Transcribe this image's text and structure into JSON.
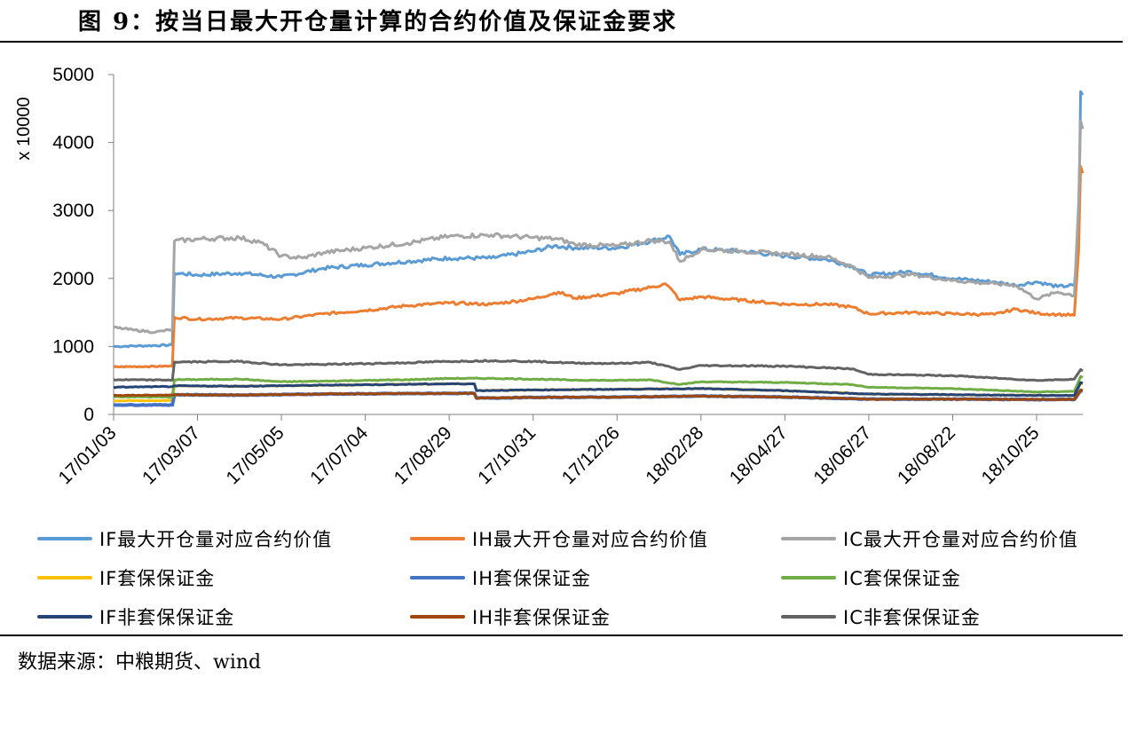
{
  "title": "图 9：按当日最大开仓量计算的合约价值及保证金要求",
  "source": "数据来源：中粮期货、wind",
  "chart_data": {
    "type": "line",
    "y_unit_label": "x 10000",
    "ylim": [
      0,
      5000
    ],
    "y_ticks": [
      0,
      1000,
      2000,
      3000,
      4000,
      5000
    ],
    "x_ticks": [
      "17/01/03",
      "17/03/07",
      "17/05/05",
      "17/07/04",
      "17/08/29",
      "17/10/31",
      "17/12/26",
      "18/02/28",
      "18/04/27",
      "18/06/27",
      "18/08/22",
      "18/10/25"
    ],
    "x_tick_index": [
      0,
      40,
      80,
      120,
      160,
      200,
      240,
      280,
      320,
      360,
      400,
      440
    ],
    "x_max_index": 462,
    "grid": false,
    "legend_position": "bottom",
    "series": [
      {
        "name": "IF最大开仓量对应合约价值",
        "color": "#5B9BD5",
        "width": 3,
        "points": [
          [
            0,
            1000
          ],
          [
            28,
            1020
          ],
          [
            29,
            2080
          ],
          [
            40,
            2050
          ],
          [
            60,
            2080
          ],
          [
            80,
            2020
          ],
          [
            100,
            2150
          ],
          [
            120,
            2200
          ],
          [
            140,
            2250
          ],
          [
            160,
            2300
          ],
          [
            180,
            2300
          ],
          [
            200,
            2400
          ],
          [
            210,
            2480
          ],
          [
            220,
            2450
          ],
          [
            240,
            2450
          ],
          [
            256,
            2550
          ],
          [
            265,
            2620
          ],
          [
            270,
            2350
          ],
          [
            280,
            2430
          ],
          [
            300,
            2400
          ],
          [
            320,
            2330
          ],
          [
            340,
            2280
          ],
          [
            352,
            2180
          ],
          [
            360,
            2050
          ],
          [
            380,
            2100
          ],
          [
            400,
            2000
          ],
          [
            420,
            1950
          ],
          [
            430,
            1900
          ],
          [
            440,
            1950
          ],
          [
            450,
            1880
          ],
          [
            458,
            1900
          ],
          [
            460,
            2600
          ],
          [
            461,
            4750
          ],
          [
            462,
            4700
          ]
        ]
      },
      {
        "name": "IH最大开仓量对应合约价值",
        "color": "#ED7D31",
        "width": 3,
        "points": [
          [
            0,
            700
          ],
          [
            28,
            710
          ],
          [
            29,
            1430
          ],
          [
            40,
            1400
          ],
          [
            60,
            1420
          ],
          [
            80,
            1400
          ],
          [
            100,
            1480
          ],
          [
            120,
            1530
          ],
          [
            140,
            1600
          ],
          [
            160,
            1640
          ],
          [
            180,
            1620
          ],
          [
            200,
            1700
          ],
          [
            212,
            1800
          ],
          [
            220,
            1710
          ],
          [
            240,
            1780
          ],
          [
            256,
            1870
          ],
          [
            263,
            1920
          ],
          [
            267,
            1800
          ],
          [
            270,
            1680
          ],
          [
            280,
            1730
          ],
          [
            300,
            1680
          ],
          [
            320,
            1620
          ],
          [
            340,
            1620
          ],
          [
            352,
            1580
          ],
          [
            360,
            1480
          ],
          [
            380,
            1500
          ],
          [
            400,
            1480
          ],
          [
            420,
            1470
          ],
          [
            430,
            1550
          ],
          [
            440,
            1490
          ],
          [
            450,
            1470
          ],
          [
            458,
            1460
          ],
          [
            460,
            2400
          ],
          [
            461,
            3650
          ],
          [
            462,
            3550
          ]
        ]
      },
      {
        "name": "IC最大开仓量对应合约价值",
        "color": "#A5A5A5",
        "width": 3,
        "points": [
          [
            0,
            1280
          ],
          [
            10,
            1240
          ],
          [
            20,
            1210
          ],
          [
            28,
            1250
          ],
          [
            29,
            2550
          ],
          [
            40,
            2580
          ],
          [
            60,
            2600
          ],
          [
            70,
            2530
          ],
          [
            80,
            2330
          ],
          [
            90,
            2300
          ],
          [
            100,
            2380
          ],
          [
            120,
            2450
          ],
          [
            140,
            2520
          ],
          [
            160,
            2620
          ],
          [
            180,
            2640
          ],
          [
            190,
            2620
          ],
          [
            200,
            2600
          ],
          [
            212,
            2580
          ],
          [
            220,
            2500
          ],
          [
            240,
            2480
          ],
          [
            256,
            2560
          ],
          [
            265,
            2540
          ],
          [
            270,
            2250
          ],
          [
            280,
            2430
          ],
          [
            300,
            2400
          ],
          [
            320,
            2360
          ],
          [
            340,
            2320
          ],
          [
            352,
            2180
          ],
          [
            360,
            2010
          ],
          [
            380,
            2060
          ],
          [
            400,
            1970
          ],
          [
            420,
            1920
          ],
          [
            430,
            1900
          ],
          [
            440,
            1700
          ],
          [
            450,
            1800
          ],
          [
            458,
            1750
          ],
          [
            460,
            3100
          ],
          [
            461,
            4320
          ],
          [
            462,
            4200
          ]
        ]
      },
      {
        "name": "IF套保保证金",
        "color": "#FFC000",
        "width": 3,
        "points": [
          [
            0,
            200
          ],
          [
            28,
            205
          ],
          [
            29,
            420
          ],
          [
            60,
            415
          ],
          [
            100,
            430
          ],
          [
            160,
            450
          ],
          [
            172,
            450
          ],
          [
            173,
            350
          ],
          [
            200,
            360
          ],
          [
            240,
            370
          ],
          [
            280,
            380
          ],
          [
            320,
            350
          ],
          [
            360,
            300
          ],
          [
            400,
            290
          ],
          [
            440,
            280
          ],
          [
            458,
            280
          ],
          [
            461,
            460
          ],
          [
            462,
            450
          ]
        ]
      },
      {
        "name": "IH套保保证金",
        "color": "#4472C4",
        "width": 4,
        "points": [
          [
            0,
            140
          ],
          [
            28,
            140
          ],
          [
            29,
            290
          ],
          [
            60,
            285
          ],
          [
            100,
            300
          ],
          [
            160,
            310
          ],
          [
            172,
            310
          ],
          [
            173,
            240
          ],
          [
            200,
            250
          ],
          [
            240,
            255
          ],
          [
            280,
            270
          ],
          [
            320,
            255
          ],
          [
            360,
            225
          ],
          [
            400,
            225
          ],
          [
            440,
            220
          ],
          [
            458,
            220
          ],
          [
            461,
            350
          ],
          [
            462,
            345
          ]
        ]
      },
      {
        "name": "IC套保保证金",
        "color": "#70AD47",
        "width": 3,
        "points": [
          [
            0,
            260
          ],
          [
            28,
            255
          ],
          [
            29,
            510
          ],
          [
            60,
            520
          ],
          [
            80,
            480
          ],
          [
            100,
            490
          ],
          [
            140,
            510
          ],
          [
            160,
            530
          ],
          [
            180,
            530
          ],
          [
            200,
            520
          ],
          [
            220,
            505
          ],
          [
            240,
            500
          ],
          [
            256,
            510
          ],
          [
            270,
            440
          ],
          [
            280,
            480
          ],
          [
            320,
            470
          ],
          [
            352,
            440
          ],
          [
            360,
            400
          ],
          [
            400,
            380
          ],
          [
            440,
            330
          ],
          [
            458,
            340
          ],
          [
            461,
            560
          ],
          [
            462,
            545
          ]
        ]
      },
      {
        "name": "IF非套保保证金",
        "color": "#264478",
        "width": 3,
        "points": [
          [
            0,
            400
          ],
          [
            28,
            410
          ],
          [
            29,
            420
          ],
          [
            60,
            415
          ],
          [
            100,
            430
          ],
          [
            160,
            450
          ],
          [
            172,
            450
          ],
          [
            173,
            350
          ],
          [
            200,
            360
          ],
          [
            240,
            370
          ],
          [
            280,
            380
          ],
          [
            320,
            350
          ],
          [
            360,
            300
          ],
          [
            400,
            290
          ],
          [
            440,
            280
          ],
          [
            458,
            280
          ],
          [
            461,
            470
          ],
          [
            462,
            460
          ]
        ]
      },
      {
        "name": "IH非套保保证金",
        "color": "#9E480E",
        "width": 3,
        "points": [
          [
            0,
            280
          ],
          [
            28,
            285
          ],
          [
            29,
            290
          ],
          [
            60,
            285
          ],
          [
            100,
            300
          ],
          [
            160,
            310
          ],
          [
            172,
            310
          ],
          [
            173,
            240
          ],
          [
            200,
            250
          ],
          [
            240,
            255
          ],
          [
            280,
            270
          ],
          [
            320,
            255
          ],
          [
            360,
            225
          ],
          [
            400,
            225
          ],
          [
            440,
            220
          ],
          [
            458,
            220
          ],
          [
            461,
            360
          ],
          [
            462,
            355
          ]
        ]
      },
      {
        "name": "IC非套保保证金",
        "color": "#636363",
        "width": 3,
        "points": [
          [
            0,
            510
          ],
          [
            28,
            505
          ],
          [
            29,
            770
          ],
          [
            60,
            780
          ],
          [
            80,
            730
          ],
          [
            100,
            735
          ],
          [
            140,
            760
          ],
          [
            160,
            780
          ],
          [
            180,
            790
          ],
          [
            200,
            780
          ],
          [
            220,
            755
          ],
          [
            240,
            750
          ],
          [
            256,
            765
          ],
          [
            270,
            660
          ],
          [
            280,
            720
          ],
          [
            320,
            710
          ],
          [
            352,
            670
          ],
          [
            360,
            590
          ],
          [
            400,
            570
          ],
          [
            440,
            500
          ],
          [
            458,
            520
          ],
          [
            461,
            660
          ],
          [
            462,
            640
          ]
        ]
      }
    ]
  }
}
